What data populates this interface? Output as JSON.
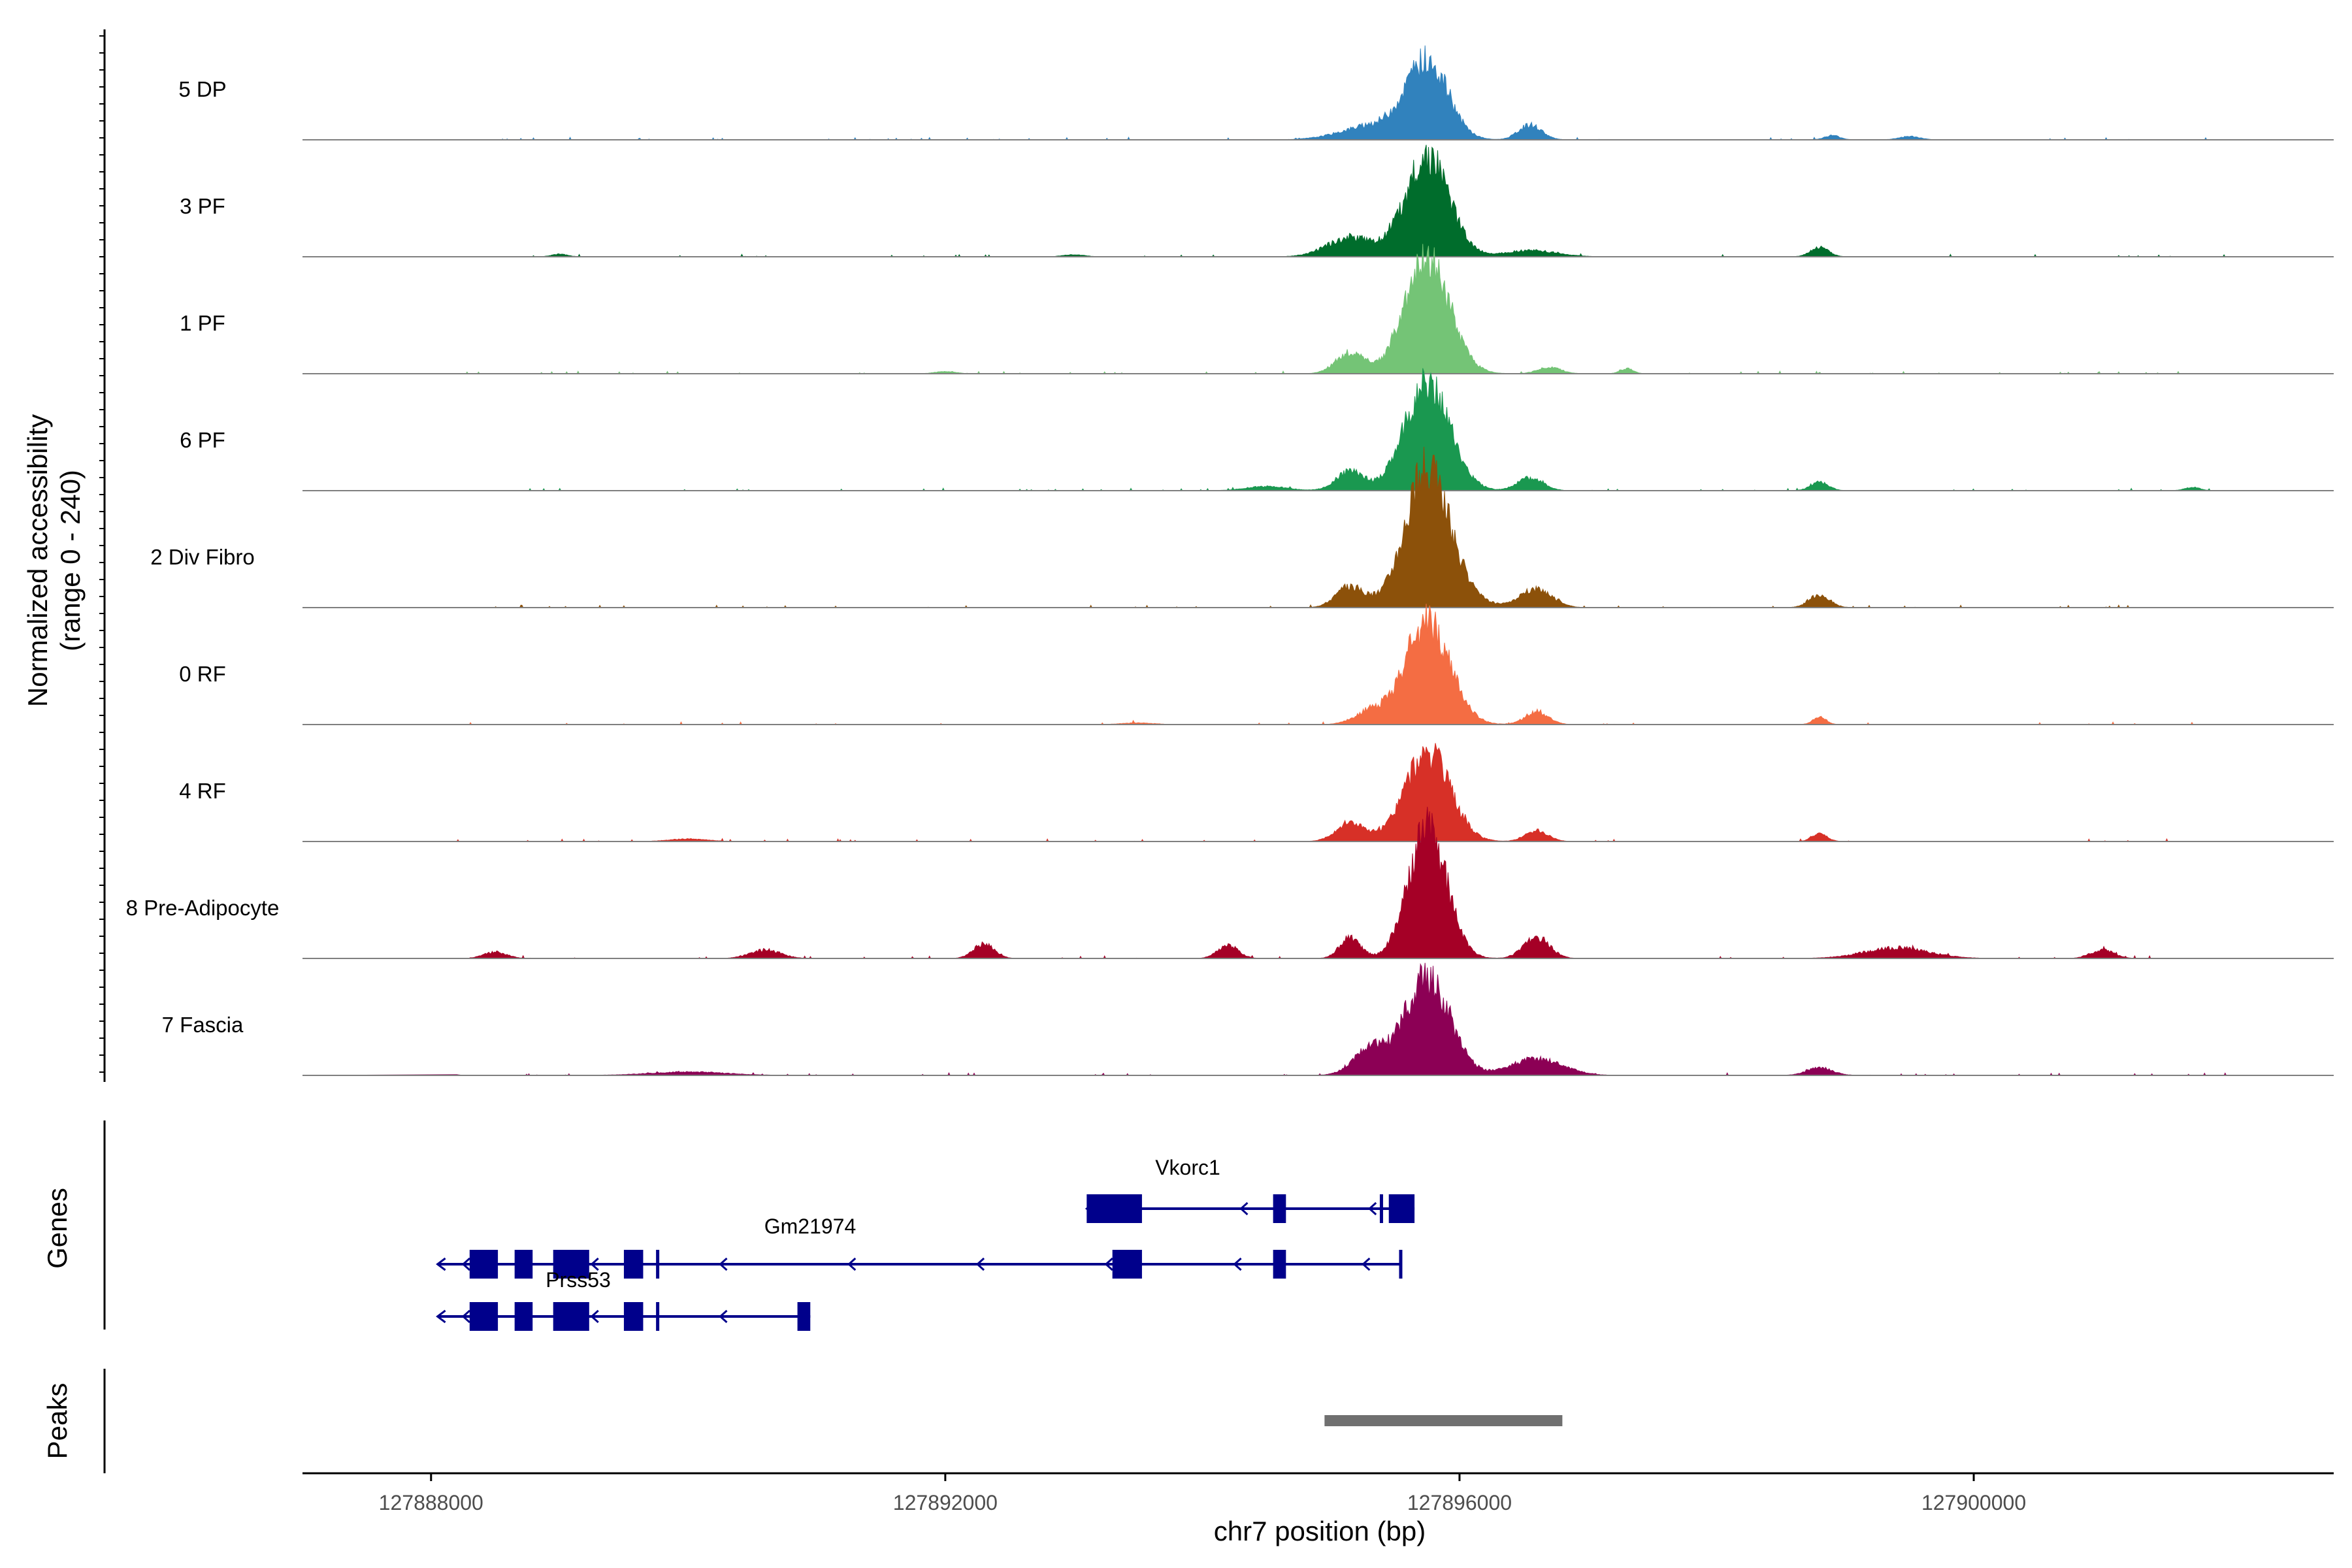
{
  "chart_data": {
    "type": "area",
    "title": "",
    "ylabel_line1": "Normalized accessibility",
    "ylabel_line2": "(range 0 - 240)",
    "ylim": [
      0,
      240
    ],
    "xlabel": "chr7 position (bp)",
    "xlim": [
      127887000,
      127902800
    ],
    "xticks": [
      127888000,
      127892000,
      127896000,
      127900000
    ],
    "xtick_labels": [
      "127888000",
      "127892000",
      "127896000",
      "127900000"
    ],
    "series": [
      {
        "name": "5 DP",
        "color": "#3182bd",
        "peaks": [
          [
            127895750,
            180,
            160
          ],
          [
            127895350,
            35,
            250
          ],
          [
            127896550,
            35,
            90
          ],
          [
            127899500,
            8,
            80
          ],
          [
            127898900,
            10,
            60
          ]
        ]
      },
      {
        "name": "3 PF",
        "color": "#006d2c",
        "peaks": [
          [
            127895750,
            235,
            170
          ],
          [
            127895150,
            45,
            180
          ],
          [
            127896550,
            15,
            200
          ],
          [
            127898800,
            22,
            70
          ],
          [
            127893000,
            5,
            80
          ],
          [
            127889000,
            6,
            60
          ]
        ]
      },
      {
        "name": "1 PF",
        "color": "#74c476",
        "peaks": [
          [
            127895750,
            265,
            175
          ],
          [
            127895150,
            50,
            110
          ],
          [
            127896700,
            15,
            90
          ],
          [
            127897300,
            12,
            50
          ],
          [
            127892000,
            5,
            80
          ]
        ]
      },
      {
        "name": "6 PF",
        "color": "#1a9850",
        "peaks": [
          [
            127895750,
            255,
            175
          ],
          [
            127895150,
            45,
            110
          ],
          [
            127896550,
            30,
            100
          ],
          [
            127898800,
            20,
            70
          ],
          [
            127894500,
            10,
            160
          ],
          [
            127901700,
            8,
            60
          ]
        ]
      },
      {
        "name": "2 Div Fibro",
        "color": "#8c510a",
        "peaks": [
          [
            127895750,
            325,
            175
          ],
          [
            127895150,
            50,
            110
          ],
          [
            127896600,
            45,
            120
          ],
          [
            127898800,
            30,
            80
          ],
          [
            127896100,
            10,
            180
          ]
        ]
      },
      {
        "name": "0 RF",
        "color": "#f46d43",
        "peaks": [
          [
            127895750,
            240,
            175
          ],
          [
            127895300,
            30,
            120
          ],
          [
            127896600,
            30,
            90
          ],
          [
            127898800,
            18,
            50
          ],
          [
            127893500,
            4,
            120
          ]
        ]
      },
      {
        "name": "4 RF",
        "color": "#d73027",
        "peaks": [
          [
            127895750,
            210,
            175
          ],
          [
            127895150,
            45,
            110
          ],
          [
            127896600,
            25,
            90
          ],
          [
            127898800,
            18,
            60
          ],
          [
            127890000,
            6,
            150
          ]
        ]
      },
      {
        "name": "8 Pre-Adipocyte",
        "color": "#a50026",
        "peaks": [
          [
            127895750,
            300,
            150
          ],
          [
            127895150,
            50,
            80
          ],
          [
            127896600,
            50,
            100
          ],
          [
            127892300,
            35,
            80
          ],
          [
            127894200,
            30,
            80
          ],
          [
            127899400,
            25,
            250
          ],
          [
            127890600,
            20,
            120
          ],
          [
            127888500,
            15,
            90
          ],
          [
            127901000,
            20,
            90
          ]
        ]
      },
      {
        "name": "7 Fascia",
        "color": "#8c0055",
        "peaks": [
          [
            127895750,
            230,
            175
          ],
          [
            127895300,
            60,
            130
          ],
          [
            127896600,
            40,
            200
          ],
          [
            127898800,
            18,
            100
          ],
          [
            127890000,
            8,
            300
          ],
          [
            127888100,
            8,
            60
          ],
          [
            127902200,
            8,
            60
          ]
        ]
      }
    ],
    "genes_track": {
      "label": "Genes",
      "color": "#00008b",
      "genes": [
        {
          "name": "Vkorc1",
          "strand": "-",
          "start": 127893100,
          "end": 127895650,
          "exons": [
            [
              127893100,
              127893530
            ],
            [
              127894550,
              127894650
            ],
            [
              127895380,
              127895400
            ],
            [
              127895450,
              127895650
            ]
          ]
        },
        {
          "name": "Gm21974",
          "strand": "-",
          "start": 127888050,
          "end": 127895550,
          "exons": [
            [
              127888300,
              127888520
            ],
            [
              127888650,
              127888790
            ],
            [
              127888950,
              127889230
            ],
            [
              127889500,
              127889650
            ],
            [
              127889750,
              127889770
            ],
            [
              127893300,
              127893530
            ],
            [
              127894550,
              127894650
            ],
            [
              127895530,
              127895550
            ]
          ]
        },
        {
          "name": "Prss53",
          "strand": "-",
          "start": 127888050,
          "end": 127890950,
          "exons": [
            [
              127888300,
              127888520
            ],
            [
              127888650,
              127888790
            ],
            [
              127888950,
              127889230
            ],
            [
              127889500,
              127889650
            ],
            [
              127889750,
              127889770
            ],
            [
              127890850,
              127890950
            ]
          ]
        }
      ]
    },
    "peaks_track": {
      "label": "Peaks",
      "color": "#707070",
      "regions": [
        [
          127894950,
          127896800
        ]
      ]
    }
  }
}
